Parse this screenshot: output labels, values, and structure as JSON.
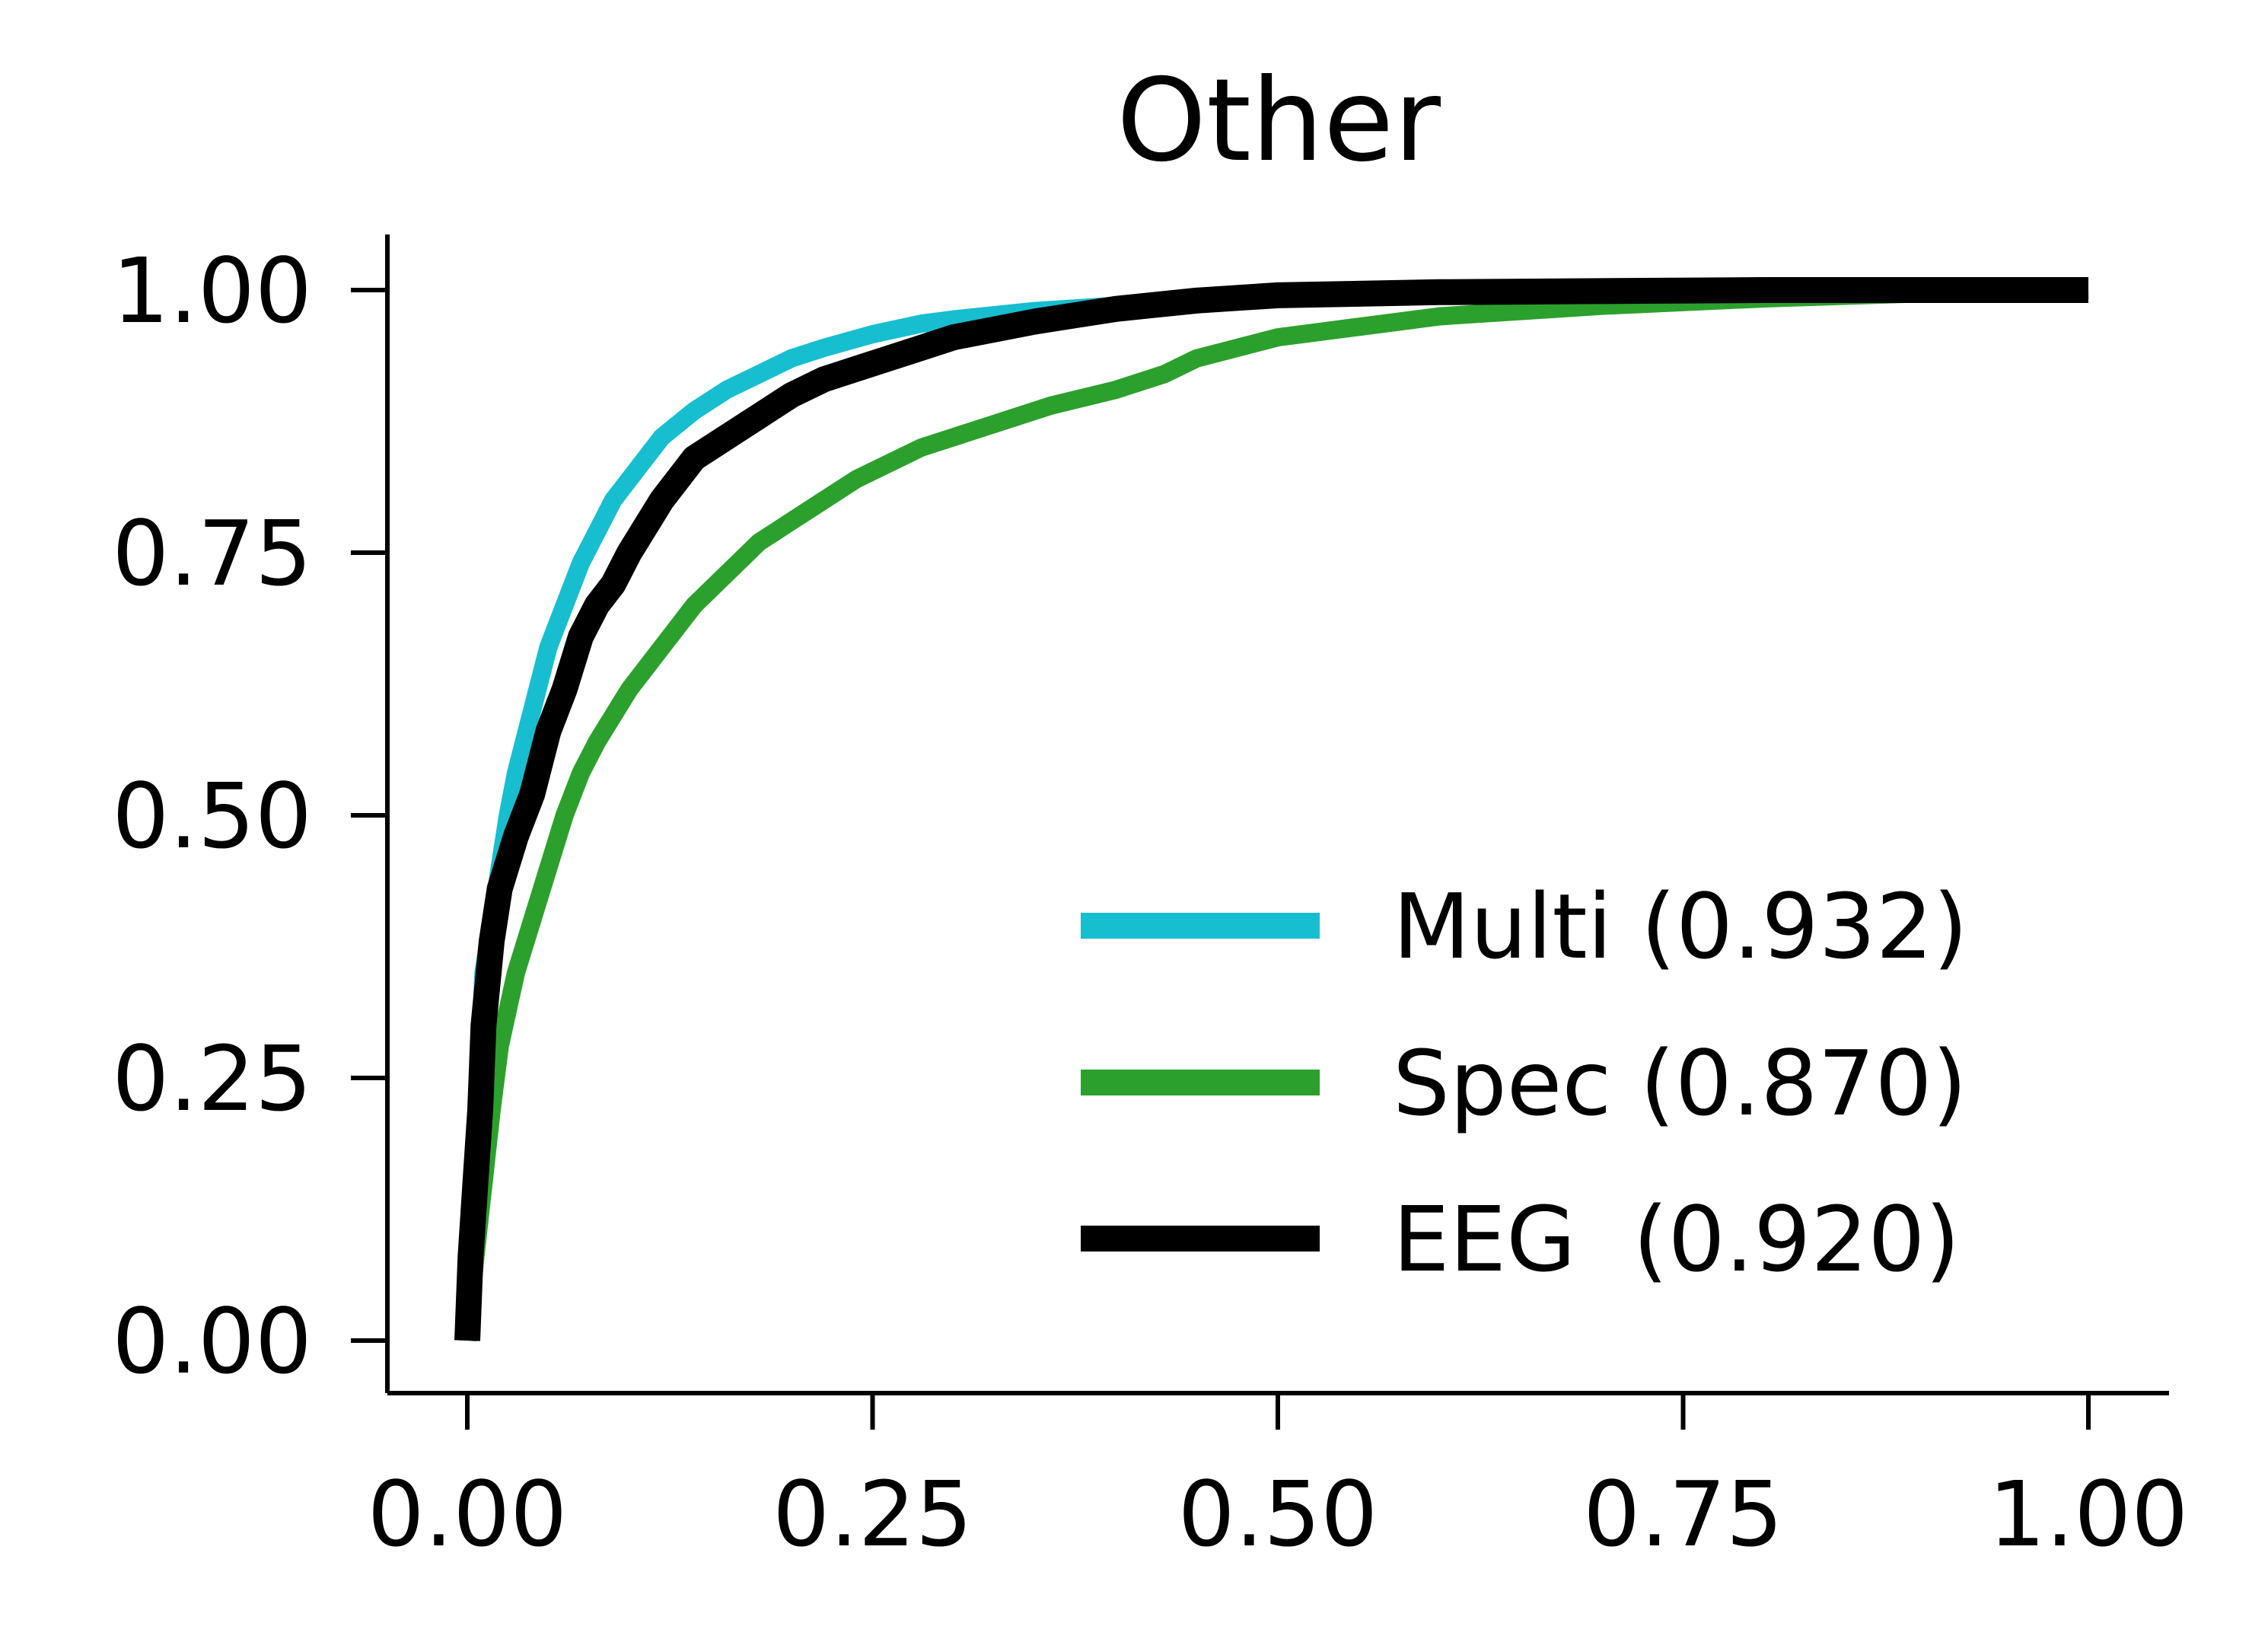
{
  "chart_data": {
    "type": "line",
    "title": "Other",
    "xlabel": "",
    "ylabel": "",
    "xlim": [
      -0.05,
      1.05
    ],
    "ylim": [
      -0.05,
      1.05
    ],
    "x_ticks": [
      "0.00",
      "0.25",
      "0.50",
      "0.75",
      "1.00"
    ],
    "y_ticks": [
      "0.00",
      "0.25",
      "0.50",
      "0.75",
      "1.00"
    ],
    "grid": false,
    "legend_position": "lower-right",
    "series": [
      {
        "name": "Multi (0.932)",
        "color": "#17becf",
        "x": [
          0,
          0.002,
          0.005,
          0.008,
          0.01,
          0.015,
          0.02,
          0.025,
          0.03,
          0.04,
          0.05,
          0.06,
          0.07,
          0.08,
          0.09,
          0.1,
          0.12,
          0.14,
          0.16,
          0.18,
          0.2,
          0.22,
          0.25,
          0.28,
          0.3,
          0.35,
          0.4,
          0.45,
          0.5,
          0.6,
          0.7,
          0.8,
          0.9,
          1.0
        ],
        "y": [
          0,
          0.1,
          0.2,
          0.28,
          0.35,
          0.4,
          0.45,
          0.5,
          0.54,
          0.6,
          0.66,
          0.7,
          0.74,
          0.77,
          0.8,
          0.82,
          0.86,
          0.885,
          0.905,
          0.92,
          0.935,
          0.945,
          0.958,
          0.968,
          0.972,
          0.98,
          0.985,
          0.99,
          0.992,
          0.995,
          0.997,
          0.998,
          0.999,
          1.0
        ]
      },
      {
        "name": "Spec (0.870)",
        "color": "#2ca02c",
        "x": [
          0,
          0.005,
          0.01,
          0.015,
          0.02,
          0.03,
          0.04,
          0.05,
          0.06,
          0.07,
          0.08,
          0.1,
          0.12,
          0.14,
          0.16,
          0.18,
          0.2,
          0.22,
          0.24,
          0.26,
          0.28,
          0.3,
          0.33,
          0.36,
          0.4,
          0.43,
          0.45,
          0.5,
          0.55,
          0.6,
          0.7,
          0.8,
          0.9,
          1.0
        ],
        "y": [
          0,
          0.08,
          0.15,
          0.22,
          0.28,
          0.35,
          0.4,
          0.45,
          0.5,
          0.54,
          0.57,
          0.62,
          0.66,
          0.7,
          0.73,
          0.76,
          0.78,
          0.8,
          0.82,
          0.835,
          0.85,
          0.86,
          0.875,
          0.89,
          0.905,
          0.92,
          0.935,
          0.955,
          0.965,
          0.975,
          0.985,
          0.992,
          0.997,
          1.0
        ]
      },
      {
        "name": "EEG  (0.920)",
        "color": "#000000",
        "x": [
          0,
          0.002,
          0.005,
          0.008,
          0.01,
          0.015,
          0.02,
          0.03,
          0.04,
          0.05,
          0.06,
          0.07,
          0.08,
          0.09,
          0.1,
          0.12,
          0.14,
          0.16,
          0.18,
          0.2,
          0.22,
          0.25,
          0.28,
          0.3,
          0.35,
          0.4,
          0.45,
          0.5,
          0.6,
          0.7,
          0.8,
          0.9,
          1.0
        ],
        "y": [
          0,
          0.08,
          0.15,
          0.22,
          0.3,
          0.38,
          0.43,
          0.48,
          0.52,
          0.58,
          0.62,
          0.67,
          0.7,
          0.72,
          0.75,
          0.8,
          0.84,
          0.86,
          0.88,
          0.9,
          0.915,
          0.93,
          0.945,
          0.955,
          0.97,
          0.982,
          0.99,
          0.995,
          0.998,
          0.999,
          1.0,
          1.0,
          1.0
        ]
      }
    ]
  }
}
